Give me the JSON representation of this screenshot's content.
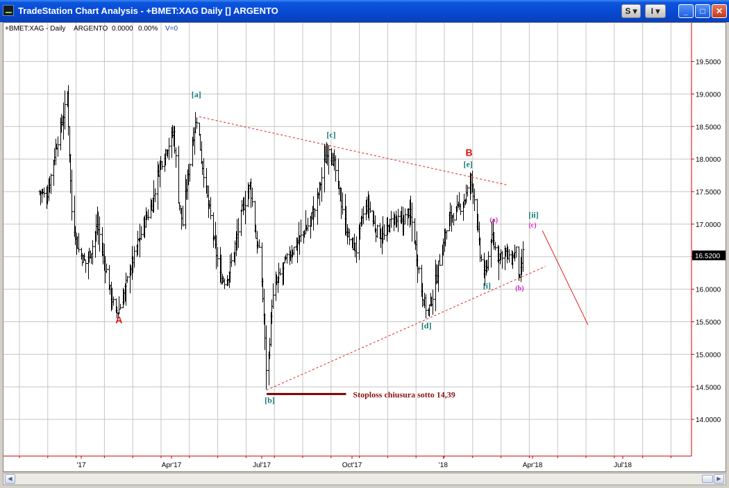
{
  "window": {
    "title": "TradeStation Chart Analysis - +BMET:XAG Daily [] ARGENTO",
    "btn_s": "S",
    "btn_i": "I",
    "btn_min": "_",
    "btn_max": "□",
    "btn_close": "✕"
  },
  "scrollbar": {
    "left_arrow": "◀",
    "right_arrow": "▶"
  },
  "chart_data": {
    "type": "ohlc-bar",
    "info_line": {
      "symbol": "+BMET:XAG - Daily",
      "name": "ARGENTO",
      "last": "0.0000",
      "change": "0.00%",
      "volume": "V=0"
    },
    "price_axis": {
      "ticks": [
        14.0,
        14.5,
        15.0,
        15.5,
        16.0,
        16.5,
        17.0,
        17.5,
        18.0,
        18.5,
        19.0,
        19.5
      ],
      "decimals": 4,
      "last_price": "16.5200"
    },
    "time_axis": {
      "ticks": [
        {
          "label": "'17",
          "date": "2017-01-02"
        },
        {
          "label": "Apr'17",
          "date": "2017-04-03"
        },
        {
          "label": "Jul'17",
          "date": "2017-07-03"
        },
        {
          "label": "Oct'17",
          "date": "2017-10-02"
        },
        {
          "label": "'18",
          "date": "2018-01-02"
        },
        {
          "label": "Apr'18",
          "date": "2018-04-02"
        },
        {
          "label": "Jul'18",
          "date": "2018-07-02"
        }
      ]
    },
    "price_path": [
      [
        "2016-11-21",
        17.5
      ],
      [
        "2016-11-28",
        17.4
      ],
      [
        "2016-12-05",
        18.0
      ],
      [
        "2016-12-09",
        18.3
      ],
      [
        "2016-12-14",
        18.6
      ],
      [
        "2016-12-19",
        19.0
      ],
      [
        "2016-12-23",
        17.2
      ],
      [
        "2016-12-30",
        16.6
      ],
      [
        "2017-01-06",
        16.4
      ],
      [
        "2017-01-12",
        16.6
      ],
      [
        "2017-01-18",
        17.0
      ],
      [
        "2017-01-24",
        16.5
      ],
      [
        "2017-02-01",
        15.9
      ],
      [
        "2017-02-06",
        15.6
      ],
      [
        "2017-02-12",
        15.8
      ],
      [
        "2017-02-18",
        16.2
      ],
      [
        "2017-02-26",
        16.6
      ],
      [
        "2017-03-06",
        17.0
      ],
      [
        "2017-03-14",
        17.3
      ],
      [
        "2017-03-22",
        17.9
      ],
      [
        "2017-03-30",
        18.2
      ],
      [
        "2017-04-05",
        18.4
      ],
      [
        "2017-04-10",
        17.4
      ],
      [
        "2017-04-14",
        17.0
      ],
      [
        "2017-04-19",
        17.7
      ],
      [
        "2017-04-24",
        18.3
      ],
      [
        "2017-04-29",
        18.7
      ],
      [
        "2017-05-03",
        18.0
      ],
      [
        "2017-05-07",
        17.6
      ],
      [
        "2017-05-15",
        16.8
      ],
      [
        "2017-05-22",
        16.2
      ],
      [
        "2017-05-28",
        16.1
      ],
      [
        "2017-06-05",
        16.6
      ],
      [
        "2017-06-13",
        17.2
      ],
      [
        "2017-06-21",
        17.6
      ],
      [
        "2017-06-27",
        16.8
      ],
      [
        "2017-07-02",
        16.4
      ],
      [
        "2017-07-05",
        15.6
      ],
      [
        "2017-07-08",
        14.39
      ],
      [
        "2017-07-13",
        15.8
      ],
      [
        "2017-07-18",
        16.1
      ],
      [
        "2017-07-26",
        16.4
      ],
      [
        "2017-08-03",
        16.6
      ],
      [
        "2017-08-11",
        16.8
      ],
      [
        "2017-08-19",
        17.0
      ],
      [
        "2017-08-27",
        17.3
      ],
      [
        "2017-09-02",
        17.8
      ],
      [
        "2017-09-08",
        18.2
      ],
      [
        "2017-09-14",
        17.9
      ],
      [
        "2017-09-20",
        17.4
      ],
      [
        "2017-09-28",
        16.8
      ],
      [
        "2017-10-06",
        16.6
      ],
      [
        "2017-10-12",
        17.1
      ],
      [
        "2017-10-18",
        17.3
      ],
      [
        "2017-10-26",
        16.9
      ],
      [
        "2017-11-03",
        16.8
      ],
      [
        "2017-11-12",
        17.1
      ],
      [
        "2017-11-20",
        17.0
      ],
      [
        "2017-11-28",
        17.2
      ],
      [
        "2017-12-03",
        16.9
      ],
      [
        "2017-12-07",
        16.4
      ],
      [
        "2017-12-12",
        15.9
      ],
      [
        "2017-12-17",
        15.6
      ],
      [
        "2017-12-22",
        15.9
      ],
      [
        "2017-12-30",
        16.5
      ],
      [
        "2018-01-08",
        17.1
      ],
      [
        "2018-01-16",
        17.2
      ],
      [
        "2018-01-24",
        17.4
      ],
      [
        "2018-01-30",
        17.7
      ],
      [
        "2018-02-04",
        17.2
      ],
      [
        "2018-02-08",
        16.5
      ],
      [
        "2018-02-13",
        16.2
      ],
      [
        "2018-02-19",
        16.8
      ],
      [
        "2018-02-26",
        16.5
      ],
      [
        "2018-03-05",
        16.6
      ],
      [
        "2018-03-10",
        16.4
      ],
      [
        "2018-03-17",
        16.6
      ],
      [
        "2018-03-20",
        16.1
      ],
      [
        "2018-03-23",
        16.55
      ]
    ],
    "trendlines": [
      {
        "name": "upper-channel-line",
        "style": "dotted",
        "from": [
          "2017-05-01",
          18.65
        ],
        "to": [
          "2018-03-08",
          17.6
        ]
      },
      {
        "name": "lower-channel-line",
        "style": "dotted",
        "from": [
          "2017-07-08",
          14.45
        ],
        "to": [
          "2018-04-15",
          16.35
        ]
      },
      {
        "name": "projection-line",
        "style": "solid",
        "from": [
          "2018-04-12",
          16.9
        ],
        "to": [
          "2018-05-28",
          15.45
        ]
      }
    ],
    "stoploss": {
      "from": "2017-07-08",
      "to": "2017-09-26",
      "price": 14.39,
      "label": "Stoploss  chiusura sotto 14,39"
    },
    "annotations": [
      {
        "text": "A",
        "date": "2017-02-09",
        "price": 15.48,
        "style": "major"
      },
      {
        "text": "B",
        "date": "2018-01-28",
        "price": 18.05,
        "style": "major"
      },
      {
        "text": "[a]",
        "date": "2017-04-28",
        "price": 18.95,
        "style": "teal"
      },
      {
        "text": "[b]",
        "date": "2017-07-11",
        "price": 14.25,
        "style": "teal"
      },
      {
        "text": "[c]",
        "date": "2017-09-11",
        "price": 18.33,
        "style": "teal"
      },
      {
        "text": "[d]",
        "date": "2017-12-16",
        "price": 15.4,
        "style": "teal"
      },
      {
        "text": "[e]",
        "date": "2018-01-27",
        "price": 17.88,
        "style": "teal"
      },
      {
        "text": "[i]",
        "date": "2018-02-15",
        "price": 16.01,
        "style": "teal"
      },
      {
        "text": "[ii]",
        "date": "2018-04-03",
        "price": 17.1,
        "style": "teal"
      },
      {
        "text": "(a)",
        "date": "2018-02-22",
        "price": 17.03,
        "style": "magenta"
      },
      {
        "text": "(b)",
        "date": "2018-03-20",
        "price": 15.98,
        "style": "magenta"
      },
      {
        "text": "(c)",
        "date": "2018-04-02",
        "price": 16.95,
        "style": "magenta"
      }
    ]
  }
}
